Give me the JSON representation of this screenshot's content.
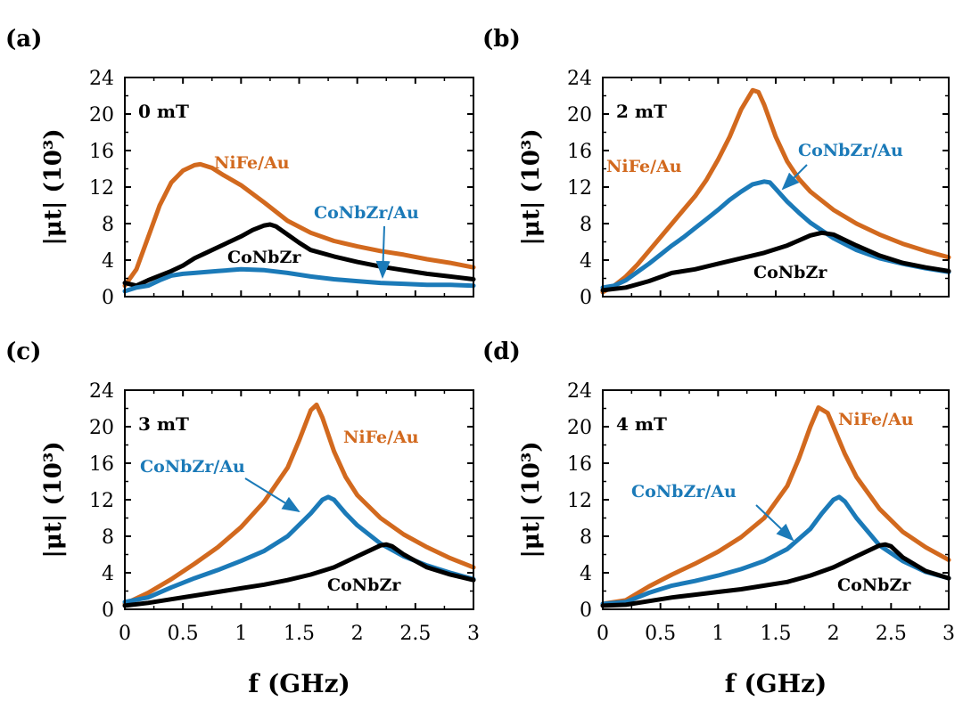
{
  "colors": {
    "NiFe/Au": "#d2691e",
    "CoNbZr/Au": "#1b7ab8",
    "CoNbZr": "#000000"
  },
  "chart_data": [
    {
      "type": "line",
      "panel": "(a)",
      "field_label": "0 mT",
      "xlabel": "f (GHz)",
      "ylabel": "|μt| (10³)",
      "xlim": [
        0,
        3
      ],
      "ylim": [
        0,
        24
      ],
      "xticks": [
        "0",
        "0.5",
        "1",
        "1.5",
        "2",
        "2.5",
        "3"
      ],
      "yticks": [
        "0",
        "4",
        "8",
        "12",
        "16",
        "20",
        "24"
      ],
      "series": [
        {
          "name": "NiFe/Au",
          "x": [
            0,
            0.1,
            0.2,
            0.3,
            0.4,
            0.5,
            0.6,
            0.65,
            0.75,
            0.85,
            1.0,
            1.2,
            1.4,
            1.6,
            1.8,
            2.0,
            2.2,
            2.4,
            2.6,
            2.8,
            3.0
          ],
          "y": [
            1.2,
            3.0,
            6.5,
            10.0,
            12.5,
            13.8,
            14.4,
            14.5,
            14.1,
            13.3,
            12.2,
            10.3,
            8.3,
            7.0,
            6.1,
            5.5,
            5.0,
            4.6,
            4.1,
            3.7,
            3.2
          ]
        },
        {
          "name": "CoNbZr",
          "x": [
            0,
            0.1,
            0.2,
            0.3,
            0.4,
            0.5,
            0.6,
            0.7,
            0.8,
            0.9,
            1.0,
            1.1,
            1.2,
            1.25,
            1.3,
            1.4,
            1.5,
            1.6,
            1.8,
            2.0,
            2.2,
            2.4,
            2.6,
            2.8,
            3.0
          ],
          "y": [
            1.5,
            1.2,
            1.8,
            2.3,
            2.8,
            3.4,
            4.2,
            4.8,
            5.4,
            6.0,
            6.6,
            7.3,
            7.8,
            7.9,
            7.7,
            6.8,
            5.9,
            5.1,
            4.4,
            3.8,
            3.3,
            2.9,
            2.5,
            2.2,
            1.9
          ]
        },
        {
          "name": "CoNbZr/Au",
          "x": [
            0,
            0.1,
            0.2,
            0.3,
            0.4,
            0.5,
            0.6,
            0.8,
            1.0,
            1.2,
            1.4,
            1.6,
            1.8,
            2.0,
            2.2,
            2.4,
            2.6,
            2.8,
            3.0
          ],
          "y": [
            0.6,
            1.0,
            1.2,
            1.8,
            2.3,
            2.5,
            2.6,
            2.8,
            3.0,
            2.9,
            2.6,
            2.2,
            1.9,
            1.7,
            1.5,
            1.4,
            1.3,
            1.3,
            1.2
          ]
        }
      ],
      "annotations": {
        "NiFe/Au": "NiFe/Au",
        "CoNbZr/Au": "CoNbZr/Au",
        "CoNbZr": "CoNbZr"
      }
    },
    {
      "type": "line",
      "panel": "(b)",
      "field_label": "2 mT",
      "xlabel": "f (GHz)",
      "ylabel": "|μt| (10³)",
      "xlim": [
        0,
        3
      ],
      "ylim": [
        0,
        24
      ],
      "xticks": [
        "0",
        "0.5",
        "1",
        "1.5",
        "2",
        "2.5",
        "3"
      ],
      "yticks": [
        "0",
        "4",
        "8",
        "12",
        "16",
        "20",
        "24"
      ],
      "series": [
        {
          "name": "NiFe/Au",
          "x": [
            0,
            0.1,
            0.2,
            0.3,
            0.4,
            0.5,
            0.6,
            0.7,
            0.8,
            0.9,
            1.0,
            1.1,
            1.2,
            1.3,
            1.35,
            1.4,
            1.5,
            1.6,
            1.7,
            1.8,
            2.0,
            2.2,
            2.4,
            2.6,
            2.8,
            3.0
          ],
          "y": [
            0.5,
            1.2,
            2.2,
            3.5,
            5.0,
            6.5,
            8.0,
            9.5,
            11.0,
            12.8,
            15.0,
            17.5,
            20.5,
            22.6,
            22.4,
            21.0,
            17.5,
            14.8,
            12.9,
            11.5,
            9.5,
            8.0,
            6.8,
            5.8,
            5.0,
            4.3
          ]
        },
        {
          "name": "CoNbZr/Au",
          "x": [
            0,
            0.1,
            0.2,
            0.3,
            0.4,
            0.5,
            0.6,
            0.7,
            0.8,
            0.9,
            1.0,
            1.1,
            1.2,
            1.3,
            1.4,
            1.45,
            1.5,
            1.6,
            1.7,
            1.8,
            2.0,
            2.2,
            2.4,
            2.6,
            2.8,
            3.0
          ],
          "y": [
            1.0,
            1.2,
            1.8,
            2.7,
            3.6,
            4.6,
            5.6,
            6.5,
            7.5,
            8.5,
            9.5,
            10.6,
            11.5,
            12.3,
            12.6,
            12.5,
            11.8,
            10.4,
            9.2,
            8.1,
            6.4,
            5.1,
            4.2,
            3.6,
            3.1,
            2.7
          ]
        },
        {
          "name": "CoNbZr",
          "x": [
            0,
            0.2,
            0.4,
            0.6,
            0.8,
            1.0,
            1.2,
            1.4,
            1.6,
            1.8,
            1.9,
            2.0,
            2.2,
            2.4,
            2.6,
            2.8,
            3.0
          ],
          "y": [
            0.7,
            1.0,
            1.7,
            2.6,
            3.0,
            3.6,
            4.2,
            4.8,
            5.6,
            6.7,
            7.0,
            6.8,
            5.6,
            4.5,
            3.7,
            3.2,
            2.8
          ]
        }
      ],
      "annotations": {
        "NiFe/Au": "NiFe/Au",
        "CoNbZr/Au": "CoNbZr/Au",
        "CoNbZr": "CoNbZr"
      }
    },
    {
      "type": "line",
      "panel": "(c)",
      "field_label": "3 mT",
      "xlabel": "f (GHz)",
      "ylabel": "|μt| (10³)",
      "xlim": [
        0,
        3
      ],
      "ylim": [
        0,
        24
      ],
      "xticks": [
        "0",
        "0.5",
        "1",
        "1.5",
        "2",
        "2.5",
        "3"
      ],
      "yticks": [
        "0",
        "4",
        "8",
        "12",
        "16",
        "20",
        "24"
      ],
      "series": [
        {
          "name": "NiFe/Au",
          "x": [
            0,
            0.2,
            0.4,
            0.6,
            0.8,
            1.0,
            1.2,
            1.4,
            1.5,
            1.6,
            1.65,
            1.7,
            1.8,
            1.9,
            2.0,
            2.2,
            2.4,
            2.6,
            2.8,
            3.0
          ],
          "y": [
            0.6,
            1.8,
            3.3,
            5.0,
            6.8,
            9.0,
            11.8,
            15.5,
            18.5,
            21.8,
            22.4,
            21.0,
            17.3,
            14.5,
            12.5,
            10.0,
            8.2,
            6.8,
            5.6,
            4.6
          ]
        },
        {
          "name": "CoNbZr/Au",
          "x": [
            0,
            0.2,
            0.4,
            0.6,
            0.8,
            1.0,
            1.2,
            1.4,
            1.6,
            1.7,
            1.75,
            1.8,
            1.9,
            2.0,
            2.2,
            2.4,
            2.6,
            2.8,
            3.0
          ],
          "y": [
            0.8,
            1.3,
            2.4,
            3.4,
            4.3,
            5.3,
            6.4,
            8.0,
            10.5,
            12.0,
            12.3,
            12.0,
            10.5,
            9.2,
            7.2,
            5.8,
            4.8,
            4.0,
            3.3
          ]
        },
        {
          "name": "CoNbZr",
          "x": [
            0,
            0.2,
            0.4,
            0.6,
            0.8,
            1.0,
            1.2,
            1.4,
            1.6,
            1.8,
            2.0,
            2.2,
            2.25,
            2.3,
            2.4,
            2.6,
            2.8,
            3.0
          ],
          "y": [
            0.4,
            0.7,
            1.1,
            1.5,
            1.9,
            2.3,
            2.7,
            3.2,
            3.8,
            4.6,
            5.8,
            7.0,
            7.1,
            6.9,
            6.0,
            4.6,
            3.8,
            3.2
          ]
        }
      ],
      "annotations": {
        "NiFe/Au": "NiFe/Au",
        "CoNbZr/Au": "CoNbZr/Au",
        "CoNbZr": "CoNbZr"
      }
    },
    {
      "type": "line",
      "panel": "(d)",
      "field_label": "4 mT",
      "xlabel": "f (GHz)",
      "ylabel": "|μt| (10³)",
      "xlim": [
        0,
        3
      ],
      "ylim": [
        0,
        24
      ],
      "xticks": [
        "0",
        "0.5",
        "1",
        "1.5",
        "2",
        "2.5",
        "3"
      ],
      "yticks": [
        "0",
        "4",
        "8",
        "12",
        "16",
        "20",
        "24"
      ],
      "series": [
        {
          "name": "NiFe/Au",
          "x": [
            0,
            0.2,
            0.4,
            0.6,
            0.8,
            1.0,
            1.2,
            1.4,
            1.6,
            1.7,
            1.8,
            1.87,
            1.95,
            2.0,
            2.1,
            2.2,
            2.4,
            2.6,
            2.8,
            3.0
          ],
          "y": [
            0.6,
            1.0,
            2.5,
            3.8,
            5.0,
            6.3,
            7.9,
            10.0,
            13.5,
            16.5,
            20.0,
            22.1,
            21.5,
            20.0,
            17.0,
            14.5,
            11.0,
            8.5,
            6.8,
            5.4
          ]
        },
        {
          "name": "CoNbZr/Au",
          "x": [
            0,
            0.2,
            0.4,
            0.6,
            0.8,
            1.0,
            1.2,
            1.4,
            1.6,
            1.8,
            1.9,
            2.0,
            2.05,
            2.1,
            2.2,
            2.4,
            2.6,
            2.8,
            3.0
          ],
          "y": [
            0.6,
            0.8,
            1.8,
            2.6,
            3.1,
            3.7,
            4.4,
            5.3,
            6.6,
            8.8,
            10.5,
            12.0,
            12.3,
            11.8,
            10.0,
            7.0,
            5.3,
            4.1,
            3.4
          ]
        },
        {
          "name": "CoNbZr",
          "x": [
            0,
            0.2,
            0.4,
            0.6,
            0.8,
            1.0,
            1.2,
            1.4,
            1.6,
            1.8,
            2.0,
            2.2,
            2.4,
            2.45,
            2.5,
            2.6,
            2.8,
            3.0
          ],
          "y": [
            0.4,
            0.5,
            0.9,
            1.3,
            1.6,
            1.9,
            2.2,
            2.6,
            3.0,
            3.7,
            4.6,
            5.8,
            7.0,
            7.1,
            6.9,
            5.7,
            4.2,
            3.4
          ]
        }
      ],
      "annotations": {
        "NiFe/Au": "NiFe/Au",
        "CoNbZr/Au": "CoNbZr/Au",
        "CoNbZr": "CoNbZr"
      }
    }
  ]
}
